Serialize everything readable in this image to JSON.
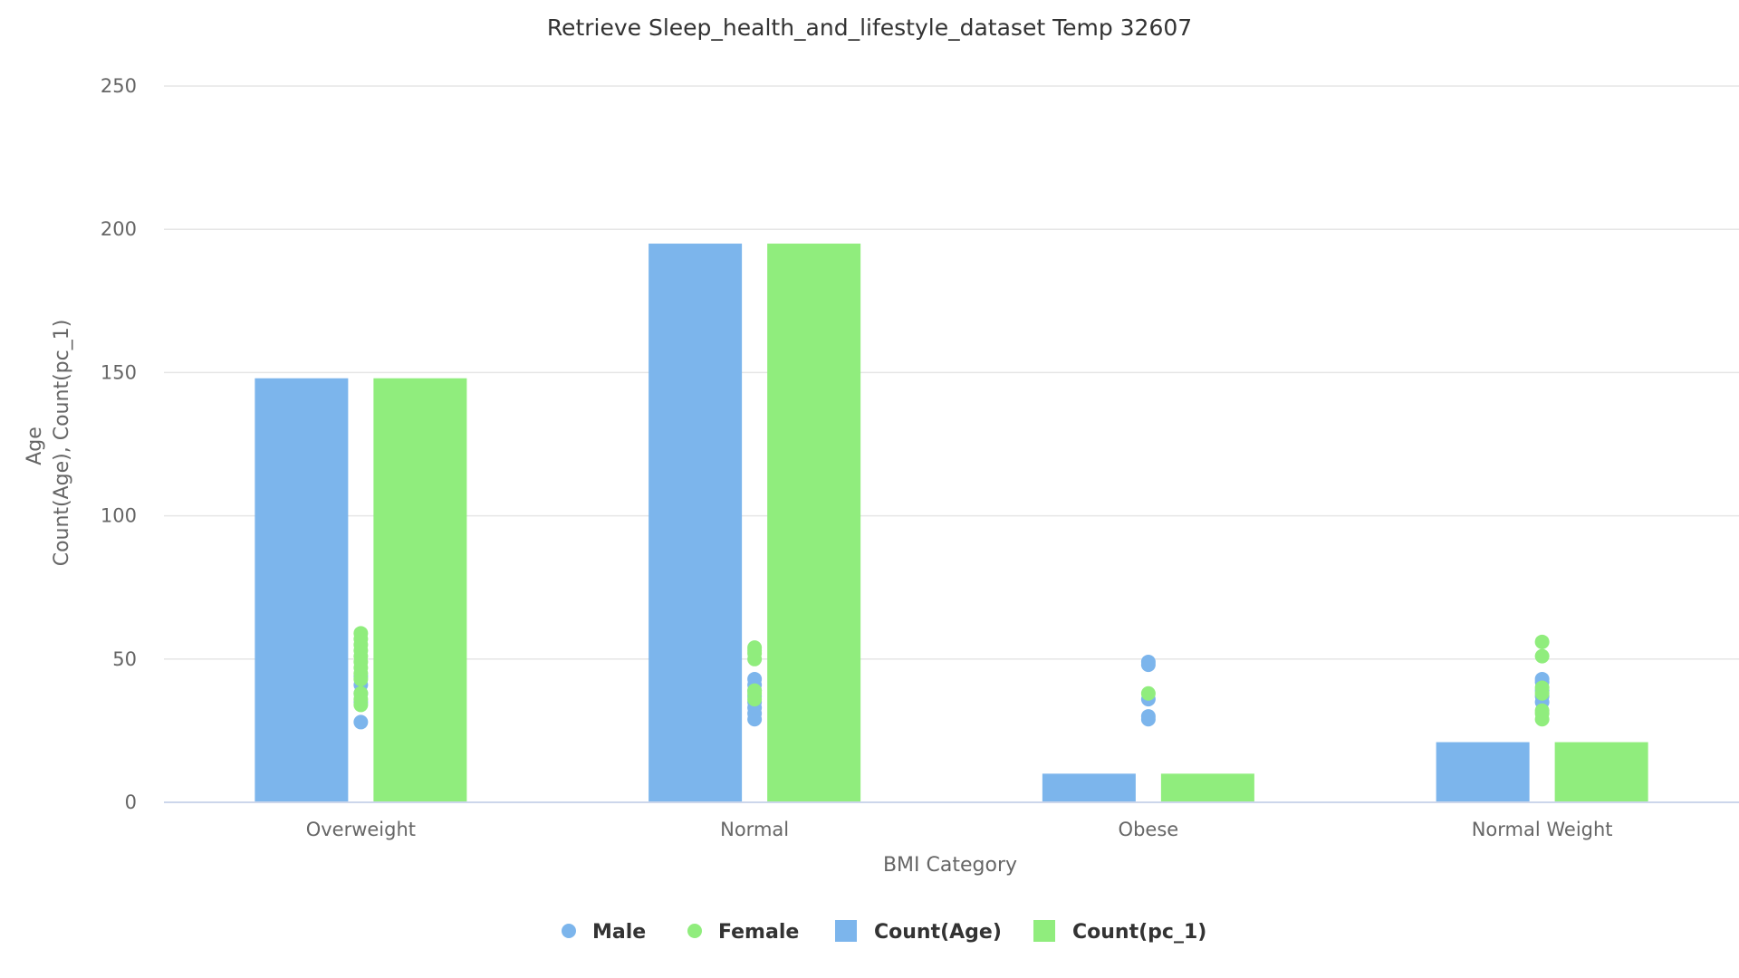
{
  "chart_data": {
    "type": "bar",
    "title": "Retrieve Sleep_health_and_lifestyle_dataset Temp 32607",
    "xlabel": "BMI Category",
    "ylabel_lines": [
      "Age",
      "Count(Age), Count(pc_1)"
    ],
    "ylim": [
      0,
      250
    ],
    "yticks": [
      0,
      50,
      100,
      150,
      200,
      250
    ],
    "grid": true,
    "legend_position": "bottom-center",
    "categories": [
      "Overweight",
      "Normal",
      "Obese",
      "Normal Weight"
    ],
    "bar_series": [
      {
        "name": "Count(Age)",
        "color": "#7cb5ec",
        "values": [
          148,
          195,
          10,
          21
        ]
      },
      {
        "name": "Count(pc_1)",
        "color": "#90ed7d",
        "values": [
          148,
          195,
          10,
          21
        ]
      }
    ],
    "scatter_series": [
      {
        "name": "Male",
        "color": "#7cb5ec",
        "points": [
          {
            "x": "Overweight",
            "y": 28
          },
          {
            "x": "Overweight",
            "y": 35
          },
          {
            "x": "Overweight",
            "y": 38
          },
          {
            "x": "Overweight",
            "y": 41
          },
          {
            "x": "Overweight",
            "y": 44
          },
          {
            "x": "Normal",
            "y": 29
          },
          {
            "x": "Normal",
            "y": 31
          },
          {
            "x": "Normal",
            "y": 33
          },
          {
            "x": "Normal",
            "y": 35
          },
          {
            "x": "Normal",
            "y": 37
          },
          {
            "x": "Normal",
            "y": 39
          },
          {
            "x": "Normal",
            "y": 41
          },
          {
            "x": "Normal",
            "y": 43
          },
          {
            "x": "Obese",
            "y": 29
          },
          {
            "x": "Obese",
            "y": 30
          },
          {
            "x": "Obese",
            "y": 36
          },
          {
            "x": "Obese",
            "y": 48
          },
          {
            "x": "Obese",
            "y": 49
          },
          {
            "x": "Normal Weight",
            "y": 35
          },
          {
            "x": "Normal Weight",
            "y": 37
          },
          {
            "x": "Normal Weight",
            "y": 39
          },
          {
            "x": "Normal Weight",
            "y": 42
          },
          {
            "x": "Normal Weight",
            "y": 43
          }
        ]
      },
      {
        "name": "Female",
        "color": "#90ed7d",
        "points": [
          {
            "x": "Overweight",
            "y": 34
          },
          {
            "x": "Overweight",
            "y": 36
          },
          {
            "x": "Overweight",
            "y": 38
          },
          {
            "x": "Overweight",
            "y": 43
          },
          {
            "x": "Overweight",
            "y": 45
          },
          {
            "x": "Overweight",
            "y": 47
          },
          {
            "x": "Overweight",
            "y": 49
          },
          {
            "x": "Overweight",
            "y": 51
          },
          {
            "x": "Overweight",
            "y": 53
          },
          {
            "x": "Overweight",
            "y": 55
          },
          {
            "x": "Overweight",
            "y": 57
          },
          {
            "x": "Overweight",
            "y": 59
          },
          {
            "x": "Normal",
            "y": 36
          },
          {
            "x": "Normal",
            "y": 38
          },
          {
            "x": "Normal",
            "y": 39
          },
          {
            "x": "Normal",
            "y": 50
          },
          {
            "x": "Normal",
            "y": 52
          },
          {
            "x": "Normal",
            "y": 53
          },
          {
            "x": "Normal",
            "y": 54
          },
          {
            "x": "Obese",
            "y": 38
          },
          {
            "x": "Normal Weight",
            "y": 29
          },
          {
            "x": "Normal Weight",
            "y": 31
          },
          {
            "x": "Normal Weight",
            "y": 32
          },
          {
            "x": "Normal Weight",
            "y": 38
          },
          {
            "x": "Normal Weight",
            "y": 40
          },
          {
            "x": "Normal Weight",
            "y": 51
          },
          {
            "x": "Normal Weight",
            "y": 56
          }
        ]
      }
    ],
    "legend": [
      {
        "label": "Male",
        "symbol": "circle",
        "color": "#7cb5ec"
      },
      {
        "label": "Female",
        "symbol": "circle",
        "color": "#90ed7d"
      },
      {
        "label": "Count(Age)",
        "symbol": "square",
        "color": "#7cb5ec"
      },
      {
        "label": "Count(pc_1)",
        "symbol": "square",
        "color": "#90ed7d"
      }
    ]
  }
}
